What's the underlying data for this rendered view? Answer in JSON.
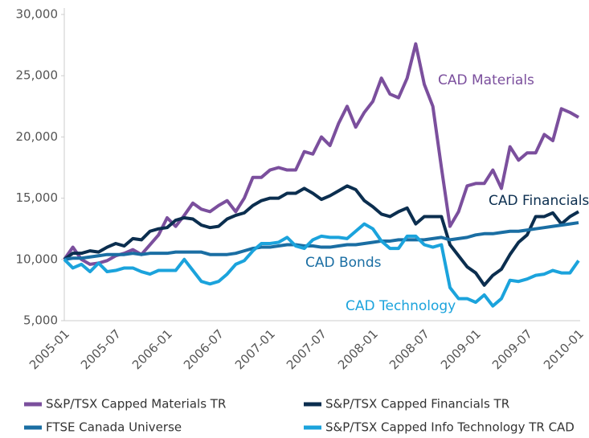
{
  "chart_data": {
    "type": "line",
    "categories": [
      "2005-01",
      null,
      null,
      null,
      null,
      null,
      "2005-07",
      null,
      null,
      null,
      null,
      null,
      "2006-01",
      null,
      null,
      null,
      null,
      null,
      "2006-07",
      null,
      null,
      null,
      null,
      null,
      "2007-01",
      null,
      null,
      null,
      null,
      null,
      "2007-07",
      null,
      null,
      null,
      null,
      null,
      "2008-01",
      null,
      null,
      null,
      null,
      null,
      "2008-07",
      null,
      null,
      null,
      null,
      null,
      "2009-01",
      null,
      null,
      null,
      null,
      null,
      "2009-07",
      null,
      null,
      null,
      null,
      null,
      "2010-01"
    ],
    "series": [
      {
        "name": "S&P/TSX Capped Materials TR",
        "color": "#7b4f9d",
        "label": "CAD Materials",
        "values": [
          10000,
          11000,
          10000,
          9600,
          9700,
          9900,
          10300,
          10500,
          10800,
          10400,
          11200,
          12000,
          13400,
          12700,
          13600,
          14600,
          14100,
          13900,
          14400,
          14800,
          13900,
          15000,
          16700,
          16700,
          17300,
          17500,
          17300,
          17300,
          18800,
          18600,
          20000,
          19300,
          21100,
          22500,
          20800,
          22000,
          22900,
          24800,
          23500,
          23200,
          24800,
          27600,
          24300,
          22500,
          17500,
          12700,
          13900,
          16000,
          16200,
          16200,
          17300,
          15800,
          19200,
          18100,
          18700,
          18700,
          20200,
          19700,
          22300,
          22000,
          21600
        ]
      },
      {
        "name": "S&P/TSX Capped Financials TR",
        "color": "#0b2e4f",
        "label": "CAD Financials",
        "values": [
          10000,
          10500,
          10500,
          10700,
          10600,
          11000,
          11300,
          11100,
          11700,
          11600,
          12300,
          12500,
          12600,
          13200,
          13400,
          13300,
          12800,
          12600,
          12700,
          13300,
          13600,
          13800,
          14400,
          14800,
          15000,
          15000,
          15400,
          15400,
          15800,
          15400,
          14900,
          15200,
          15600,
          16000,
          15700,
          14800,
          14300,
          13700,
          13500,
          13900,
          14200,
          12900,
          13500,
          13500,
          13500,
          11200,
          10300,
          9400,
          8900,
          7900,
          8700,
          9200,
          10400,
          11400,
          12000,
          13500,
          13500,
          13800,
          12900,
          13500,
          13900
        ]
      },
      {
        "name": "FTSE Canada Universe",
        "color": "#1a6ea3",
        "label": "CAD Bonds",
        "values": [
          10000,
          10100,
          10100,
          10200,
          10300,
          10400,
          10400,
          10400,
          10500,
          10400,
          10500,
          10500,
          10500,
          10600,
          10600,
          10600,
          10600,
          10400,
          10400,
          10400,
          10500,
          10700,
          10900,
          11000,
          11000,
          11100,
          11200,
          11200,
          11100,
          11100,
          11000,
          11000,
          11100,
          11200,
          11200,
          11300,
          11400,
          11500,
          11500,
          11600,
          11600,
          11600,
          11600,
          11700,
          11800,
          11600,
          11700,
          11800,
          12000,
          12100,
          12100,
          12200,
          12300,
          12300,
          12400,
          12500,
          12600,
          12700,
          12800,
          12900,
          13000
        ]
      },
      {
        "name": "S&P/TSX Capped Info Technology TR CAD",
        "color": "#1ba3dc",
        "label": "CAD Technology",
        "values": [
          10000,
          9300,
          9600,
          9000,
          9700,
          9000,
          9100,
          9300,
          9300,
          9000,
          8800,
          9100,
          9100,
          9100,
          10000,
          9100,
          8200,
          8000,
          8200,
          8800,
          9600,
          9900,
          10700,
          11300,
          11300,
          11400,
          11800,
          11100,
          10900,
          11600,
          11900,
          11800,
          11800,
          11700,
          12300,
          12900,
          12500,
          11500,
          10900,
          10900,
          11900,
          11900,
          11200,
          11000,
          11200,
          7700,
          6800,
          6800,
          6500,
          7100,
          6200,
          6800,
          8300,
          8200,
          8400,
          8700,
          8800,
          9100,
          8900,
          8900,
          9900
        ]
      }
    ],
    "ylim": [
      5000,
      30000
    ],
    "yticks": [
      {
        "value": 5000,
        "label": "5,000"
      },
      {
        "value": 10000,
        "label": "10,000"
      },
      {
        "value": 15000,
        "label": "15,000"
      },
      {
        "value": 20000,
        "label": "20,000"
      },
      {
        "value": 25000,
        "label": "25,000"
      },
      {
        "value": 30000,
        "label": "30,000"
      }
    ],
    "grid": false
  }
}
